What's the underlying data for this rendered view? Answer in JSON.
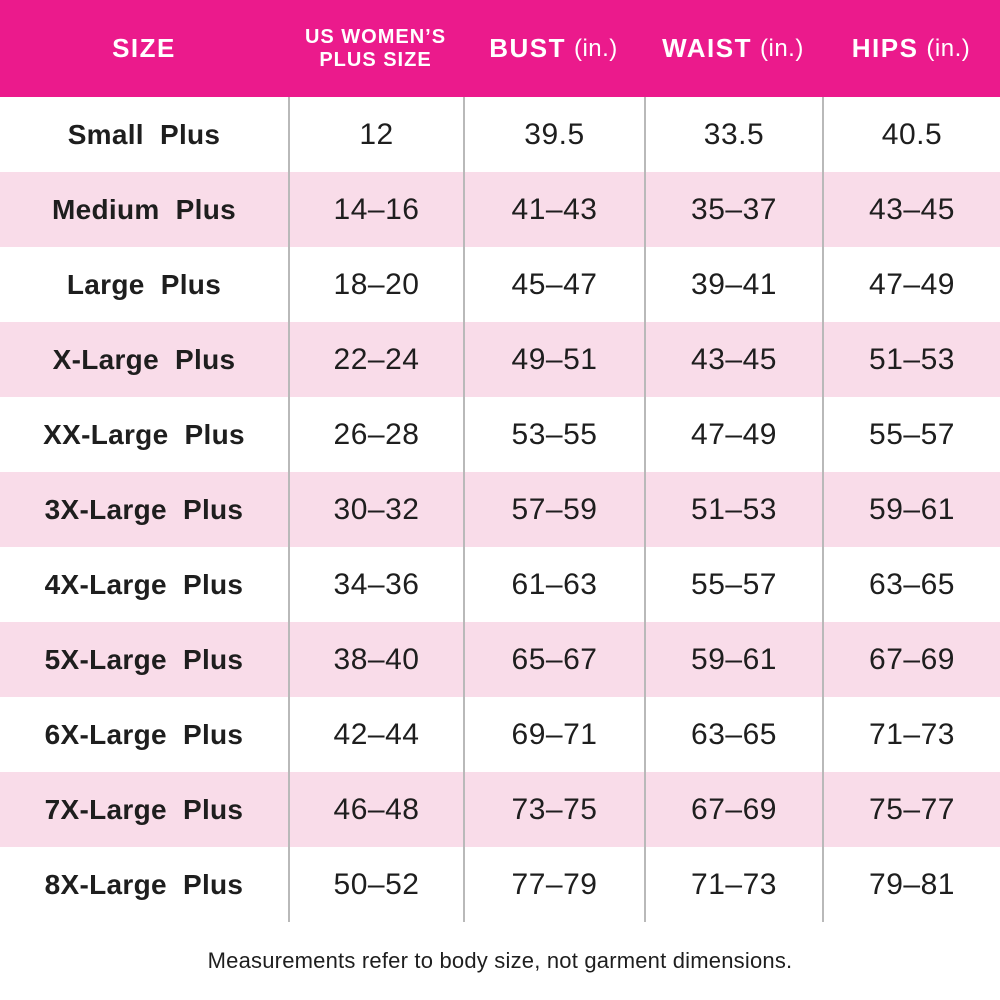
{
  "colors": {
    "header_bg": "#EB1A8C",
    "header_text": "#FFFFFF",
    "row_bg": "#FFFFFF",
    "row_alt_bg": "#F9DCE9",
    "body_text": "#1E1E1E",
    "grid_line": "#B9B9B9",
    "outer_line": "#D6D6D6",
    "bottom_line": "#C9C9C9"
  },
  "table": {
    "header": {
      "col1": {
        "title": "SIZE"
      },
      "col2": {
        "title_line1": "US WOMEN’S",
        "title_line2": "PLUS SIZE"
      },
      "col3": {
        "title": "BUST",
        "unit": "(in.)"
      },
      "col4": {
        "title": "WAIST",
        "unit": "(in.)"
      },
      "col5": {
        "title": "HIPS",
        "unit": "(in.)"
      }
    },
    "rows": [
      {
        "size": "Small Plus",
        "us_plus_size": "12",
        "bust": "39.5",
        "waist": "33.5",
        "hips": "40.5"
      },
      {
        "size": "Medium Plus",
        "us_plus_size": "14–16",
        "bust": "41–43",
        "waist": "35–37",
        "hips": "43–45"
      },
      {
        "size": "Large Plus",
        "us_plus_size": "18–20",
        "bust": "45–47",
        "waist": "39–41",
        "hips": "47–49"
      },
      {
        "size": "X-Large Plus",
        "us_plus_size": "22–24",
        "bust": "49–51",
        "waist": "43–45",
        "hips": "51–53"
      },
      {
        "size": "XX-Large Plus",
        "us_plus_size": "26–28",
        "bust": "53–55",
        "waist": "47–49",
        "hips": "55–57"
      },
      {
        "size": "3X-Large Plus",
        "us_plus_size": "30–32",
        "bust": "57–59",
        "waist": "51–53",
        "hips": "59–61"
      },
      {
        "size": "4X-Large Plus",
        "us_plus_size": "34–36",
        "bust": "61–63",
        "waist": "55–57",
        "hips": "63–65"
      },
      {
        "size": "5X-Large Plus",
        "us_plus_size": "38–40",
        "bust": "65–67",
        "waist": "59–61",
        "hips": "67–69"
      },
      {
        "size": "6X-Large Plus",
        "us_plus_size": "42–44",
        "bust": "69–71",
        "waist": "63–65",
        "hips": "71–73"
      },
      {
        "size": "7X-Large Plus",
        "us_plus_size": "46–48",
        "bust": "73–75",
        "waist": "67–69",
        "hips": "75–77"
      },
      {
        "size": "8X-Large Plus",
        "us_plus_size": "50–52",
        "bust": "77–79",
        "waist": "71–73",
        "hips": "79–81"
      }
    ]
  },
  "footnote": "Measurements refer to body size, not garment dimensions.",
  "chart_data": {
    "type": "table",
    "title": "Plus Size Measurement Chart",
    "columns": [
      "SIZE",
      "US WOMEN’S PLUS SIZE",
      "BUST (in.)",
      "WAIST (in.)",
      "HIPS (in.)"
    ],
    "rows": [
      [
        "Small Plus",
        "12",
        "39.5",
        "33.5",
        "40.5"
      ],
      [
        "Medium Plus",
        "14–16",
        "41–43",
        "35–37",
        "43–45"
      ],
      [
        "Large Plus",
        "18–20",
        "45–47",
        "39–41",
        "47–49"
      ],
      [
        "X-Large Plus",
        "22–24",
        "49–51",
        "43–45",
        "51–53"
      ],
      [
        "XX-Large Plus",
        "26–28",
        "53–55",
        "47–49",
        "55–57"
      ],
      [
        "3X-Large Plus",
        "30–32",
        "57–59",
        "51–53",
        "59–61"
      ],
      [
        "4X-Large Plus",
        "34–36",
        "61–63",
        "55–57",
        "63–65"
      ],
      [
        "5X-Large Plus",
        "38–40",
        "65–67",
        "59–61",
        "67–69"
      ],
      [
        "6X-Large Plus",
        "42–44",
        "69–71",
        "63–65",
        "71–73"
      ],
      [
        "7X-Large Plus",
        "46–48",
        "73–75",
        "67–69",
        "75–77"
      ],
      [
        "8X-Large Plus",
        "50–52",
        "77–79",
        "71–73",
        "79–81"
      ]
    ],
    "footnote": "Measurements refer to body size, not garment dimensions.",
    "layout": {
      "header_style": "solid pink band, white bold uppercase text",
      "row_striping": "white / light pink alternating, starting white",
      "column_dividers": "gray vertical lines in body only",
      "units": "inches"
    }
  }
}
